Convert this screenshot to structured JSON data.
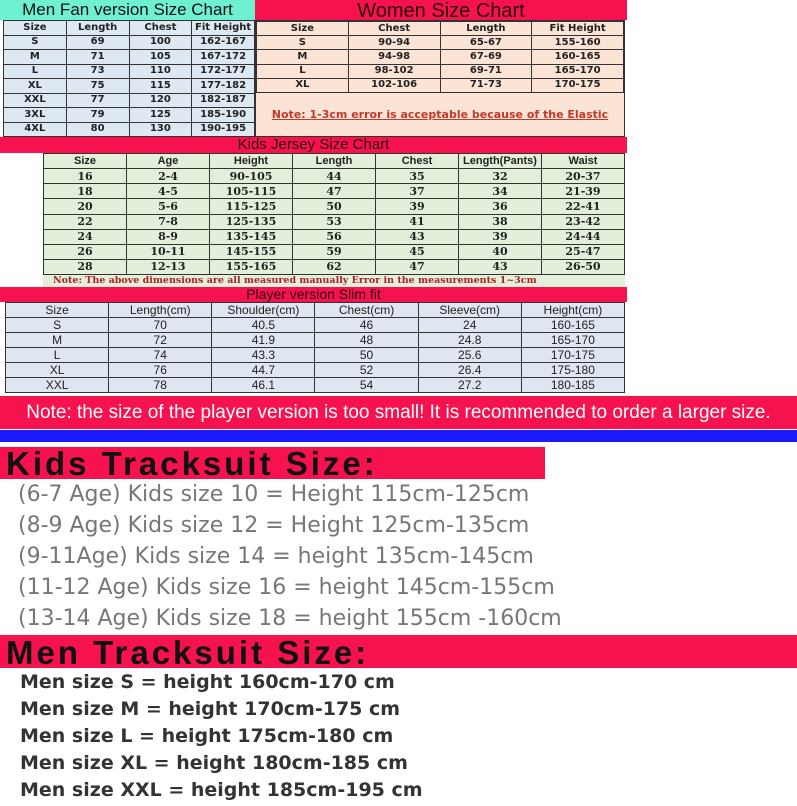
{
  "colors": {
    "accent_red": "#f5124e",
    "men_title": "#6ff0d0",
    "blue_bar": "#1a1aff"
  },
  "men": {
    "title": "Men Fan version Size Chart",
    "headers": [
      "Size",
      "Length",
      "Chest",
      "Fit Height"
    ],
    "rows": [
      [
        "S",
        "69",
        "100",
        "162-167"
      ],
      [
        "M",
        "71",
        "105",
        "167-172"
      ],
      [
        "L",
        "73",
        "110",
        "172-177"
      ],
      [
        "XL",
        "75",
        "115",
        "177-182"
      ],
      [
        "XXL",
        "77",
        "120",
        "182-187"
      ],
      [
        "3XL",
        "79",
        "125",
        "185-190"
      ],
      [
        "4XL",
        "80",
        "130",
        "190-195"
      ]
    ]
  },
  "women": {
    "title": "Women Size Chart",
    "headers": [
      "Size",
      "Chest",
      "Length",
      "Fit Height"
    ],
    "rows": [
      [
        "S",
        "90-94",
        "65-67",
        "155-160"
      ],
      [
        "M",
        "94-98",
        "67-69",
        "160-165"
      ],
      [
        "L",
        "98-102",
        "69-71",
        "165-170"
      ],
      [
        "XL",
        "102-106",
        "71-73",
        "170-175"
      ]
    ],
    "note": "Note: 1-3cm error is acceptable because of the Elastic"
  },
  "kids": {
    "title": "Kids Jersey Size Chart",
    "headers": [
      "Size",
      "Age",
      "Height",
      "Length",
      "Chest",
      "Length(Pants)",
      "Waist"
    ],
    "rows": [
      [
        "16",
        "2-4",
        "90-105",
        "44",
        "35",
        "32",
        "20-37"
      ],
      [
        "18",
        "4-5",
        "105-115",
        "47",
        "37",
        "34",
        "21-39"
      ],
      [
        "20",
        "5-6",
        "115-125",
        "50",
        "39",
        "36",
        "22-41"
      ],
      [
        "22",
        "7-8",
        "125-135",
        "53",
        "41",
        "38",
        "23-42"
      ],
      [
        "24",
        "8-9",
        "135-145",
        "56",
        "43",
        "39",
        "24-44"
      ],
      [
        "26",
        "10-11",
        "145-155",
        "59",
        "45",
        "40",
        "25-47"
      ],
      [
        "28",
        "12-13",
        "155-165",
        "62",
        "47",
        "43",
        "26-50"
      ]
    ],
    "note": "Note: The above dimensions are all measured manually Error in the measurements 1~3cm"
  },
  "player": {
    "title": "Player version Slim fit",
    "headers": [
      "Size",
      "Length(cm)",
      "Shoulder(cm)",
      "Chest(cm)",
      "Sleeve(cm)",
      "Height(cm)"
    ],
    "rows": [
      [
        "S",
        "70",
        "40.5",
        "46",
        "24",
        "160-165"
      ],
      [
        "M",
        "72",
        "41.9",
        "48",
        "24.8",
        "165-170"
      ],
      [
        "L",
        "74",
        "43.3",
        "50",
        "25.6",
        "170-175"
      ],
      [
        "XL",
        "76",
        "44.7",
        "52",
        "26.4",
        "175-180"
      ],
      [
        "XXL",
        "78",
        "46.1",
        "54",
        "27.2",
        "180-185"
      ]
    ]
  },
  "player_note": "Note: the size of the player version is too small! It is recommended to order a larger size.",
  "kids_tracksuit": {
    "title": "Kids Tracksuit  Size:",
    "lines": [
      "(6-7 Age) Kids size 10 = Height 115cm-125cm",
      "(8-9 Age) Kids size 12 = Height 125cm-135cm",
      "(9-11Age) Kids size 14 = height 135cm-145cm",
      "(11-12 Age) Kids size 16 = height 145cm-155cm",
      "(13-14 Age) Kids size 18 = height 155cm -160cm"
    ]
  },
  "men_tracksuit": {
    "title": "Men Tracksuit  Size:",
    "lines": [
      "Men size S = height 160cm-170 cm",
      "Men size M = height 170cm-175 cm",
      "Men size L = height 175cm-180 cm",
      "Men size XL = height 180cm-185 cm",
      "Men size XXL = height 185cm-195 cm"
    ]
  }
}
